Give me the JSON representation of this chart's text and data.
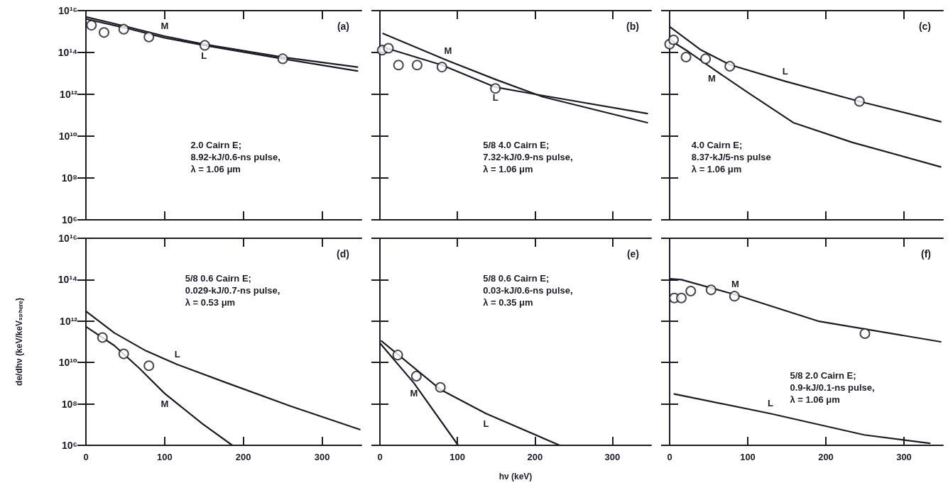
{
  "chart_data": [
    {
      "type": "line",
      "title": "(a)",
      "xlim": [
        0,
        350
      ],
      "xticks": [
        {
          "value": 0,
          "label": null
        },
        {
          "value": 100,
          "label": null
        },
        {
          "value": 200,
          "label": null
        },
        {
          "value": 300,
          "label": null
        }
      ],
      "ylim": [
        1000000.0,
        1e+16
      ],
      "yticks": [
        {
          "value": 1000000.0,
          "label": "10⁶"
        },
        {
          "value": 100000000.0,
          "label": "10⁸"
        },
        {
          "value": 10000000000.0,
          "label": "10¹⁰"
        },
        {
          "value": 1000000000000.0,
          "label": "10¹²"
        },
        {
          "value": 100000000000000.0,
          "label": "10¹⁴"
        },
        {
          "value": 1e+16,
          "label": "10¹⁶"
        }
      ],
      "log": "y",
      "grid": false,
      "tick_labels": "y",
      "line_style": "solid",
      "annotations": [
        "2.0 Cairn E;",
        "8.92-kJ/0.6-ns pulse,",
        "λ = 1.06 μm"
      ],
      "series": [
        {
          "name": "M",
          "marker": "none",
          "color": "#1c1c28",
          "x": [
            0,
            50,
            100,
            150,
            250,
            345
          ],
          "values": [
            5000000000000000.0,
            1800000000000000.0,
            600000000000000.0,
            250000000000000.0,
            60000000000000.0,
            20000000000000.0
          ]
        },
        {
          "name": "L",
          "marker": "none",
          "color": "#1c1c28",
          "x": [
            0,
            50,
            100,
            150,
            250,
            345
          ],
          "values": [
            4000000000000000.0,
            1500000000000000.0,
            500000000000000.0,
            220000000000000.0,
            50000000000000.0,
            13000000000000.0
          ]
        },
        {
          "type": "scatter",
          "marker": "circle",
          "color": "#1c1c28",
          "x": [
            7,
            23,
            48,
            80,
            151,
            250
          ],
          "values": [
            2000000000000000.0,
            900000000000000.0,
            1300000000000000.0,
            550000000000000.0,
            220000000000000.0,
            50000000000000.0
          ]
        }
      ]
    },
    {
      "type": "line",
      "title": "(b)",
      "xlim": [
        0,
        350
      ],
      "xticks": [
        {
          "value": 0,
          "label": null
        },
        {
          "value": 100,
          "label": null
        },
        {
          "value": 200,
          "label": null
        },
        {
          "value": 300,
          "label": null
        }
      ],
      "ylim": [
        1000000.0,
        1e+16
      ],
      "yticks": [
        {
          "value": 1000000.0,
          "label": null
        },
        {
          "value": 100000000.0,
          "label": null
        },
        {
          "value": 10000000000.0,
          "label": null
        },
        {
          "value": 1000000000000.0,
          "label": null
        },
        {
          "value": 100000000000000.0,
          "label": null
        },
        {
          "value": 1e+16,
          "label": null
        }
      ],
      "log": "y",
      "grid": false,
      "tick_labels": false,
      "line_style": "solid",
      "annotations": [
        "5/8 4.0 Cairn E;",
        "7.32-kJ/0.9-ns pulse,",
        "λ = 1.06 μm"
      ],
      "series": [
        {
          "name": "M",
          "marker": "none",
          "color": "#1c1c28",
          "x": [
            4,
            88,
            150,
            210,
            345
          ],
          "values": [
            800000000000000.0,
            40000000000000.0,
            5000000000000.0,
            760000000000.0,
            44000000000.0
          ]
        },
        {
          "name": "L",
          "marker": "none",
          "color": "#1c1c28",
          "x": [
            2,
            80,
            149,
            210,
            345
          ],
          "values": [
            190000000000000.0,
            25000000000000.0,
            2200000000000.0,
            870000000000.0,
            120000000000.0
          ]
        },
        {
          "type": "scatter",
          "marker": "circle",
          "color": "#1c1c28",
          "x": [
            3,
            11,
            24,
            48,
            80,
            149
          ],
          "values": [
            130000000000000.0,
            160000000000000.0,
            25000000000000.0,
            25000000000000.0,
            20000000000000.0,
            1900000000000.0
          ]
        }
      ]
    },
    {
      "type": "line",
      "title": "(c)",
      "xlim": [
        0,
        350
      ],
      "xticks": [
        {
          "value": 0,
          "label": null
        },
        {
          "value": 100,
          "label": null
        },
        {
          "value": 200,
          "label": null
        },
        {
          "value": 300,
          "label": null
        }
      ],
      "ylim": [
        1000000.0,
        1e+16
      ],
      "yticks": [
        {
          "value": 1000000.0,
          "label": null
        },
        {
          "value": 100000000.0,
          "label": null
        },
        {
          "value": 10000000000.0,
          "label": null
        },
        {
          "value": 1000000000000.0,
          "label": null
        },
        {
          "value": 100000000000000.0,
          "label": null
        },
        {
          "value": 1e+16,
          "label": null
        }
      ],
      "log": "y",
      "grid": false,
      "tick_labels": false,
      "line_style": "solid",
      "annotations": [
        "4.0 Cairn E;",
        "8.37-kJ/5-ns pulse",
        "λ = 1.06 μm"
      ],
      "series": [
        {
          "name": "L",
          "marker": "none",
          "color": "#1c1c28",
          "x": [
            0,
            39,
            77,
            148,
            243,
            347
          ],
          "values": [
            1700000000000000.0,
            140000000000000.0,
            26000000000000.0,
            4200000000000.0,
            460000000000.0,
            49000000000.0
          ]
        },
        {
          "name": "M",
          "marker": "none",
          "color": "#1c1c28",
          "x": [
            0,
            24,
            54,
            99,
            159,
            234,
            347
          ],
          "values": [
            400000000000000.0,
            110000000000000.0,
            18000000000000.0,
            1300000000000.0,
            43000000000.0,
            5000000000.0,
            340000000.0
          ]
        },
        {
          "type": "scatter",
          "marker": "circle",
          "color": "#1c1c28",
          "x": [
            0,
            5,
            21,
            46,
            77,
            243
          ],
          "values": [
            250000000000000.0,
            400000000000000.0,
            60000000000000.0,
            50000000000000.0,
            22000000000000.0,
            460000000000.0
          ]
        }
      ]
    },
    {
      "type": "line",
      "title": "(d)",
      "ylabel": "de/dhν (keV/keVₛₚₕₑᵣₑ)",
      "xlim": [
        0,
        350
      ],
      "xticks": [
        0,
        100,
        200,
        300
      ],
      "ylim": [
        1000000.0,
        1e+16
      ],
      "yticks": [
        {
          "value": 1000000.0,
          "label": "10⁶"
        },
        {
          "value": 100000000.0,
          "label": "10⁸"
        },
        {
          "value": 10000000000.0,
          "label": "10¹⁰"
        },
        {
          "value": 1000000000000.0,
          "label": "10¹²"
        },
        {
          "value": 100000000000000.0,
          "label": "10¹⁴"
        },
        {
          "value": 1e+16,
          "label": "10¹⁶"
        }
      ],
      "log": "y",
      "grid": false,
      "line_style": "solid",
      "annotations": [
        "5/8 0.6 Cairn E;",
        "0.029-kJ/0.7-ns pulse,",
        "λ = 0.53 μm"
      ],
      "series": [
        {
          "name": "L",
          "marker": "none",
          "color": "#1c1c28",
          "x": [
            0,
            36,
            76,
            116,
            180,
            260,
            348
          ],
          "values": [
            3000000000000.0,
            270000000000.0,
            37000000000.0,
            8000000000.0,
            1000000000.0,
            78000000.0,
            5800000.0
          ]
        },
        {
          "name": "M",
          "marker": "none",
          "color": "#1c1c28",
          "x": [
            0,
            36,
            68,
            100,
            148,
            186
          ],
          "values": [
            540000000000.0,
            66000000000.0,
            5200000000.0,
            320000000.0,
            11000000.0,
            1000000.0
          ]
        },
        {
          "type": "scatter",
          "marker": "circle",
          "color": "#1c1c28",
          "x": [
            21,
            48,
            80
          ],
          "values": [
            160000000000.0,
            26000000000.0,
            7000000000.0
          ]
        }
      ]
    },
    {
      "type": "line",
      "title": "(e)",
      "xlabel": "hν (keV)",
      "xlim": [
        0,
        350
      ],
      "xticks": [
        0,
        100,
        200,
        300
      ],
      "ylim": [
        1000000.0,
        1e+16
      ],
      "yticks": [
        {
          "value": 1000000.0,
          "label": null
        },
        {
          "value": 100000000.0,
          "label": null
        },
        {
          "value": 10000000000.0,
          "label": null
        },
        {
          "value": 1000000000000.0,
          "label": null
        },
        {
          "value": 100000000000000.0,
          "label": null
        },
        {
          "value": 1e+16,
          "label": null
        }
      ],
      "log": "y",
      "grid": false,
      "tick_labels": "x",
      "line_style": "solid",
      "annotations": [
        "5/8 0.6 Cairn E;",
        "0.03-kJ/0.6-ns pulse,",
        "λ = 0.35 μm"
      ],
      "series": [
        {
          "name": "L",
          "marker": "none",
          "color": "#1c1c28",
          "x": [
            2,
            78,
            137,
            232
          ],
          "values": [
            110000000000.0,
            500000000.0,
            34000000.0,
            1000000.0
          ]
        },
        {
          "name": "M",
          "marker": "none",
          "color": "#1c1c28",
          "x": [
            0,
            44,
            101
          ],
          "values": [
            87000000000.0,
            1000000000.0,
            1000000.0
          ]
        },
        {
          "type": "scatter",
          "marker": "circle",
          "color": "#1c1c28",
          "x": [
            23,
            47,
            78
          ],
          "values": [
            23000000000.0,
            2200000000.0,
            630000000.0
          ]
        }
      ]
    },
    {
      "type": "line",
      "title": "(f)",
      "xlim": [
        0,
        350
      ],
      "xticks": [
        0,
        100,
        200,
        300
      ],
      "ylim": [
        1000000.0,
        1e+16
      ],
      "yticks": [
        {
          "value": 1000000.0,
          "label": null
        },
        {
          "value": 100000000.0,
          "label": null
        },
        {
          "value": 10000000000.0,
          "label": null
        },
        {
          "value": 1000000000000.0,
          "label": null
        },
        {
          "value": 100000000000000.0,
          "label": null
        },
        {
          "value": 1e+16,
          "label": null
        }
      ],
      "log": "y",
      "grid": false,
      "tick_labels": "x",
      "line_style": "solid",
      "annotations": [
        "5/8 2.0 Cairn E;",
        "0.9-kJ/0.1-ns pulse,",
        "λ = 1.06 μm"
      ],
      "series": [
        {
          "name": "M",
          "marker": "none",
          "color": "#1c1c28",
          "x": [
            0,
            15,
            84,
            190,
            347
          ],
          "values": [
            110000000000000.0,
            100000000000000.0,
            19000000000000.0,
            1000000000000.0,
            100000000000.0
          ]
        },
        {
          "name": "L",
          "marker": "none",
          "color": "#1c1c28",
          "x": [
            6,
            129,
            249,
            333
          ],
          "values": [
            300000000.0,
            34000000.0,
            3200000.0,
            1260000.0
          ]
        },
        {
          "type": "scatter",
          "marker": "circle",
          "color": "#1c1c28",
          "x": [
            6,
            15,
            27,
            53,
            83,
            250
          ],
          "values": [
            13000000000000.0,
            13000000000000.0,
            28000000000000.0,
            32000000000000.0,
            16000000000000.0,
            250000000000.0
          ]
        }
      ]
    }
  ]
}
